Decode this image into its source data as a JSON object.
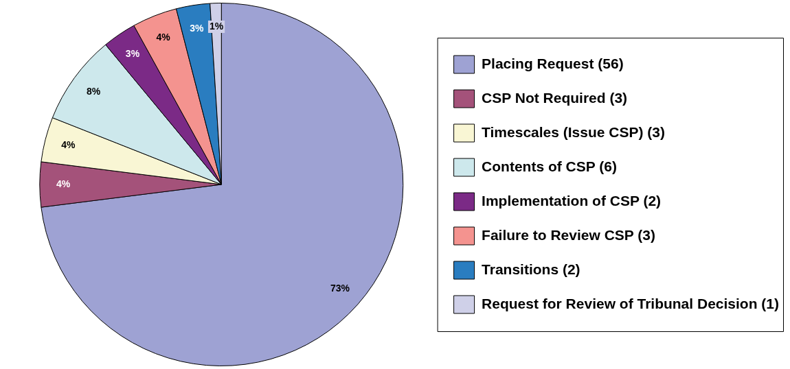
{
  "chart_data": {
    "type": "pie",
    "categories": [
      "Placing Request (56)",
      "CSP Not Required (3)",
      "Timescales (Issue CSP) (3)",
      "Contents of CSP (6)",
      "Implementation of CSP (2)",
      "Failure to Review CSP (3)",
      "Transitions (2)",
      "Request for Review of Tribunal Decision (1)"
    ],
    "values": [
      73,
      4,
      4,
      8,
      3,
      4,
      3,
      1
    ],
    "value_labels": [
      "73%",
      "4%",
      "4%",
      "8%",
      "3%",
      "4%",
      "3%",
      "1%"
    ],
    "colors": [
      "#9ea2d3",
      "#a4527a",
      "#f9f6d4",
      "#cde8ec",
      "#7b2a86",
      "#f4938f",
      "#2a7dc0",
      "#cfd0e8"
    ],
    "legend": "right"
  }
}
